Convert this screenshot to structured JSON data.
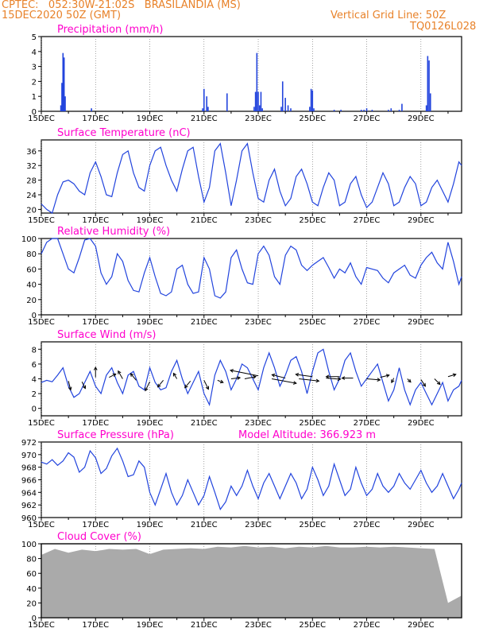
{
  "header": {
    "line1_left": "CPTEC:   052:30W-21:02S   BRASILANDIA (MS)",
    "line2_left": "15DEC2020 50Z (GMT)",
    "line1_right": "Vertical Grid Line: 50Z",
    "line2_right": "TQ0126L028"
  },
  "colors": {
    "header": "#e8822a",
    "title": "#ff00cc",
    "line": "#2244dd",
    "bar": "#2244dd",
    "cloud": "#aaaaaa",
    "wind_arrow": "#000000"
  },
  "xaxis": {
    "labels": [
      "15DEC",
      "17DEC",
      "19DEC",
      "21DEC",
      "23DEC",
      "25DEC",
      "27DEC",
      "29DEC"
    ],
    "label_days": [
      0,
      2,
      4,
      6,
      8,
      10,
      12,
      14
    ],
    "range_days": [
      0,
      15.5
    ]
  },
  "chart_data": [
    {
      "type": "bar",
      "title": "Precipitation (mm/h)",
      "ylim": [
        0,
        5
      ],
      "yticks": [
        0,
        1,
        2,
        3,
        4,
        5
      ],
      "x_unit": "days since 15DEC 00Z",
      "x": [
        0.72,
        0.76,
        0.8,
        0.84,
        0.88,
        1.85,
        5.95,
        6.0,
        6.1,
        6.15,
        6.85,
        7.85,
        7.9,
        7.95,
        8.0,
        8.05,
        8.1,
        8.15,
        8.85,
        8.9,
        9.0,
        9.1,
        9.2,
        9.9,
        9.95,
        10.0,
        10.05,
        10.8,
        11.05,
        11.8,
        11.9,
        12.0,
        12.2,
        12.8,
        12.9,
        13.2,
        13.3,
        14.2,
        14.25,
        14.3,
        14.35
      ],
      "values": [
        0.4,
        1.9,
        3.9,
        3.6,
        1.0,
        0.2,
        0.2,
        1.5,
        1.0,
        0.3,
        1.2,
        0.3,
        1.3,
        3.9,
        1.3,
        0.4,
        1.3,
        0.2,
        0.3,
        2.0,
        0.9,
        0.4,
        0.2,
        0.3,
        1.5,
        1.4,
        0.2,
        0.1,
        0.1,
        0.1,
        0.1,
        0.2,
        0.1,
        0.1,
        0.2,
        0.1,
        0.5,
        0.4,
        3.7,
        3.4,
        1.2
      ]
    },
    {
      "type": "line",
      "title": "Surface Temperature (nC)",
      "ylim": [
        19,
        39
      ],
      "yticks": [
        20,
        24,
        28,
        32,
        36
      ],
      "x": [
        0,
        0.2,
        0.4,
        0.6,
        0.8,
        1,
        1.2,
        1.4,
        1.6,
        1.8,
        2,
        2.2,
        2.4,
        2.6,
        2.8,
        3,
        3.2,
        3.4,
        3.6,
        3.8,
        4,
        4.2,
        4.4,
        4.6,
        4.8,
        5,
        5.2,
        5.4,
        5.6,
        5.8,
        6,
        6.2,
        6.4,
        6.6,
        6.8,
        7,
        7.2,
        7.4,
        7.6,
        7.8,
        8,
        8.2,
        8.4,
        8.6,
        8.8,
        9,
        9.2,
        9.4,
        9.6,
        9.8,
        10,
        10.2,
        10.4,
        10.6,
        10.8,
        11,
        11.2,
        11.4,
        11.6,
        11.8,
        12,
        12.2,
        12.4,
        12.6,
        12.8,
        13,
        13.2,
        13.4,
        13.6,
        13.8,
        14,
        14.2,
        14.4,
        14.6,
        14.8,
        15,
        15.2,
        15.4,
        15.5
      ],
      "values": [
        21.5,
        20,
        19,
        24,
        27.5,
        28,
        27,
        25,
        24,
        30,
        33,
        29,
        24,
        23.5,
        30,
        35,
        36,
        30,
        26,
        25,
        32,
        36,
        37,
        32,
        28,
        25,
        31,
        36,
        37,
        29,
        22,
        26,
        36,
        38,
        30,
        21,
        28,
        36,
        38,
        30,
        23,
        22,
        28,
        31,
        25,
        21,
        23,
        29,
        31,
        27,
        22,
        21,
        26,
        30,
        28,
        21,
        22,
        27,
        29,
        24,
        20.5,
        22,
        26,
        30,
        27,
        21,
        22,
        26,
        29,
        27,
        21,
        22,
        26,
        28,
        25,
        22,
        27,
        33,
        32
      ]
    },
    {
      "type": "line",
      "title": "Relative Humidity (%)",
      "ylim": [
        0,
        100
      ],
      "yticks": [
        0,
        20,
        40,
        60,
        80,
        100
      ],
      "x": [
        0,
        0.2,
        0.4,
        0.6,
        0.8,
        1,
        1.2,
        1.4,
        1.6,
        1.8,
        2,
        2.2,
        2.4,
        2.6,
        2.8,
        3,
        3.2,
        3.4,
        3.6,
        3.8,
        4,
        4.2,
        4.4,
        4.6,
        4.8,
        5,
        5.2,
        5.4,
        5.6,
        5.8,
        6,
        6.2,
        6.4,
        6.6,
        6.8,
        7,
        7.2,
        7.4,
        7.6,
        7.8,
        8,
        8.2,
        8.4,
        8.6,
        8.8,
        9,
        9.2,
        9.4,
        9.6,
        9.8,
        10,
        10.2,
        10.4,
        10.6,
        10.8,
        11,
        11.2,
        11.4,
        11.6,
        11.8,
        12,
        12.2,
        12.4,
        12.6,
        12.8,
        13,
        13.2,
        13.4,
        13.6,
        13.8,
        14,
        14.2,
        14.4,
        14.6,
        14.8,
        15,
        15.2,
        15.4,
        15.5
      ],
      "values": [
        80,
        95,
        100,
        100,
        80,
        60,
        55,
        75,
        98,
        100,
        90,
        55,
        40,
        50,
        80,
        70,
        45,
        32,
        30,
        55,
        75,
        50,
        28,
        25,
        30,
        60,
        65,
        40,
        28,
        30,
        75,
        60,
        25,
        22,
        30,
        75,
        85,
        60,
        42,
        40,
        80,
        90,
        78,
        50,
        40,
        78,
        90,
        85,
        65,
        58,
        65,
        70,
        75,
        62,
        48,
        60,
        55,
        68,
        50,
        40,
        62,
        60,
        58,
        48,
        42,
        55,
        60,
        65,
        52,
        48,
        65,
        75,
        82,
        68,
        60,
        95,
        70,
        40,
        50
      ]
    },
    {
      "type": "line",
      "title": "Surface Wind (m/s)",
      "ylim": [
        -1,
        9
      ],
      "yticks": [
        0,
        2,
        4,
        6,
        8
      ],
      "x": [
        0,
        0.2,
        0.4,
        0.6,
        0.8,
        1,
        1.2,
        1.4,
        1.6,
        1.8,
        2,
        2.2,
        2.4,
        2.6,
        2.8,
        3,
        3.2,
        3.4,
        3.6,
        3.8,
        4,
        4.2,
        4.4,
        4.6,
        4.8,
        5,
        5.2,
        5.4,
        5.6,
        5.8,
        6,
        6.2,
        6.4,
        6.6,
        6.8,
        7,
        7.2,
        7.4,
        7.6,
        7.8,
        8,
        8.2,
        8.4,
        8.6,
        8.8,
        9,
        9.2,
        9.4,
        9.6,
        9.8,
        10,
        10.2,
        10.4,
        10.6,
        10.8,
        11,
        11.2,
        11.4,
        11.6,
        11.8,
        12,
        12.2,
        12.4,
        12.6,
        12.8,
        13,
        13.2,
        13.4,
        13.6,
        13.8,
        14,
        14.2,
        14.4,
        14.6,
        14.8,
        15,
        15.2,
        15.4,
        15.5
      ],
      "values": [
        3.5,
        3.8,
        3.6,
        4.5,
        5.5,
        3.0,
        1.5,
        2.0,
        3.5,
        5.0,
        3.0,
        2.0,
        4.5,
        5.5,
        3.5,
        2.0,
        4.5,
        5.0,
        3.0,
        2.5,
        5.5,
        3.5,
        2.5,
        2.8,
        5.0,
        6.5,
        4.0,
        2.0,
        3.5,
        5.0,
        2.0,
        0.5,
        4.5,
        6.5,
        5.0,
        2.5,
        4.0,
        6.0,
        5.5,
        4.0,
        2.5,
        5.5,
        7.5,
        5.5,
        3.0,
        4.5,
        6.5,
        7.0,
        5.0,
        2.0,
        5.0,
        7.5,
        8.0,
        5.0,
        2.5,
        4.0,
        6.5,
        7.5,
        5.0,
        3.0,
        4.0,
        5.0,
        6.0,
        3.5,
        1.0,
        2.5,
        5.5,
        2.5,
        0.5,
        2.5,
        3.5,
        2.0,
        0.5,
        2.0,
        3.5,
        1.0,
        2.5,
        3.0,
        3.8
      ],
      "arrows": {
        "x": [
          1.0,
          1.5,
          2.0,
          2.5,
          3.0,
          3.5,
          4.0,
          4.5,
          5.0,
          5.5,
          6.0,
          6.5,
          7.0,
          7.5,
          8.0,
          8.5,
          9.0,
          9.5,
          10.0,
          10.5,
          11.0,
          11.5,
          12.0,
          12.5,
          13.0,
          13.5,
          14.0,
          14.5,
          15.0
        ],
        "y": [
          3.7,
          3.6,
          4.2,
          4.2,
          4.0,
          3.8,
          3.6,
          3.8,
          4.0,
          3.7,
          3.8,
          3.8,
          4.0,
          4.0,
          4.4,
          4.0,
          4.1,
          4.0,
          4.3,
          4.1,
          4.3,
          4.1,
          4.0,
          4.2,
          4.1,
          4.0,
          3.9,
          4.0,
          4.3
        ],
        "u": [
          0.2,
          0.3,
          0.0,
          0.6,
          -0.4,
          -0.5,
          -0.4,
          -0.5,
          -0.3,
          -0.5,
          0.4,
          0.5,
          0.8,
          1.0,
          -2.5,
          2.2,
          -1.2,
          1.8,
          -1.5,
          1.3,
          -1.2,
          -1.0,
          1.2,
          0.8,
          -0.2,
          0.3,
          0.4,
          0.5,
          0.7
        ],
        "v": [
          -0.8,
          -0.6,
          0.9,
          0.3,
          0.7,
          0.6,
          -0.8,
          -0.6,
          0.5,
          -0.6,
          -0.8,
          -0.2,
          0.1,
          0.2,
          0.5,
          -0.4,
          0.3,
          -0.2,
          0.2,
          -0.1,
          0.0,
          0.0,
          -0.1,
          0.2,
          -0.4,
          -0.3,
          -0.6,
          -0.5,
          0.2
        ]
      }
    },
    {
      "type": "line",
      "title": "Surface Pressure (hPa)",
      "annotation": "Model Altitude: 366.923 m",
      "ylim": [
        960,
        972
      ],
      "yticks": [
        960,
        962,
        964,
        966,
        968,
        970,
        972
      ],
      "x": [
        0,
        0.2,
        0.4,
        0.6,
        0.8,
        1,
        1.2,
        1.4,
        1.6,
        1.8,
        2,
        2.2,
        2.4,
        2.6,
        2.8,
        3,
        3.2,
        3.4,
        3.6,
        3.8,
        4,
        4.2,
        4.4,
        4.6,
        4.8,
        5,
        5.2,
        5.4,
        5.6,
        5.8,
        6,
        6.2,
        6.4,
        6.6,
        6.8,
        7,
        7.2,
        7.4,
        7.6,
        7.8,
        8,
        8.2,
        8.4,
        8.6,
        8.8,
        9,
        9.2,
        9.4,
        9.6,
        9.8,
        10,
        10.2,
        10.4,
        10.6,
        10.8,
        11,
        11.2,
        11.4,
        11.6,
        11.8,
        12,
        12.2,
        12.4,
        12.6,
        12.8,
        13,
        13.2,
        13.4,
        13.6,
        13.8,
        14,
        14.2,
        14.4,
        14.6,
        14.8,
        15,
        15.2,
        15.4,
        15.5
      ],
      "values": [
        968.8,
        968.5,
        969.2,
        968.3,
        969.0,
        970.3,
        969.6,
        967.2,
        968.0,
        970.6,
        969.5,
        967.0,
        967.8,
        969.8,
        971.0,
        969.0,
        966.5,
        966.8,
        969.0,
        968.0,
        964.0,
        962.0,
        964.5,
        967.0,
        964.0,
        962.0,
        963.5,
        966.0,
        964.0,
        962.0,
        963.5,
        966.5,
        964.0,
        961.3,
        962.5,
        965.0,
        963.5,
        965.0,
        967.5,
        965.0,
        963.0,
        965.5,
        967.0,
        965.0,
        963.0,
        965.0,
        967.0,
        965.5,
        963.0,
        964.5,
        968.0,
        966.0,
        963.5,
        965.0,
        968.5,
        966.0,
        963.5,
        964.5,
        968.0,
        965.5,
        963.5,
        964.5,
        967.0,
        965.0,
        964.0,
        965.0,
        967.0,
        965.5,
        964.5,
        966.0,
        967.5,
        965.5,
        964.0,
        965.0,
        967.0,
        965.0,
        963.0,
        964.5,
        965.5
      ]
    },
    {
      "type": "area",
      "title": "Cloud Cover (%)",
      "ylim": [
        0,
        100
      ],
      "yticks": [
        0,
        20,
        40,
        60,
        80,
        100
      ],
      "x": [
        0,
        0.5,
        1,
        1.5,
        2,
        2.5,
        3,
        3.5,
        4,
        4.5,
        5,
        5.5,
        6,
        6.5,
        7,
        7.5,
        8,
        8.5,
        9,
        9.5,
        10,
        10.5,
        11,
        11.5,
        12,
        12.5,
        13,
        13.5,
        14,
        14.5,
        15,
        15.5
      ],
      "values": [
        85,
        93,
        88,
        92,
        90,
        93,
        92,
        93,
        86,
        92,
        93,
        94,
        93,
        96,
        95,
        97,
        95,
        96,
        94,
        96,
        95,
        97,
        95,
        95,
        96,
        95,
        96,
        95,
        94,
        93,
        20,
        30
      ]
    }
  ]
}
